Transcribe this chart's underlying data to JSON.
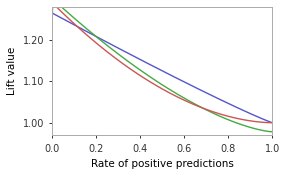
{
  "title": "",
  "xlabel": "Rate of positive predictions",
  "ylabel": "Lift value",
  "xlim": [
    0.0,
    1.0
  ],
  "ylim": [
    0.97,
    1.28
  ],
  "yticks": [
    1.0,
    1.1,
    1.2
  ],
  "xticks": [
    0.0,
    0.2,
    0.4,
    0.6,
    0.8,
    1.0
  ],
  "colors": {
    "blue": "#5555cc",
    "green": "#44aa44",
    "red": "#cc5555"
  },
  "background": "#ffffff",
  "lw": 1.0
}
